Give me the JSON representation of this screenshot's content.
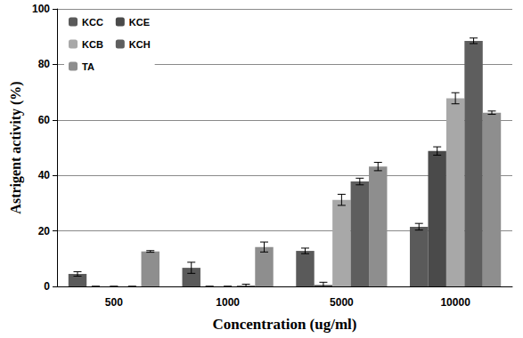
{
  "chart_data": {
    "type": "bar",
    "x_label": "Concentration (ug/ml)",
    "y_label": "Astrigent activity (%)",
    "categories": [
      "500",
      "1000",
      "5000",
      "10000"
    ],
    "series": [
      {
        "name": "KCC",
        "color": "#5a5a5a",
        "values": [
          4.5,
          6.7,
          12.8,
          21.5
        ],
        "errors": [
          0.8,
          2.0,
          1.0,
          1.2
        ]
      },
      {
        "name": "KCE",
        "color": "#4a4a4a",
        "values": [
          0,
          0,
          0.5,
          48.8
        ],
        "errors": [
          0,
          0,
          1.0,
          1.5
        ]
      },
      {
        "name": "KCB",
        "color": "#a8a8a8",
        "values": [
          0,
          0,
          31.2,
          67.8
        ],
        "errors": [
          0,
          0,
          2.0,
          2.0
        ]
      },
      {
        "name": "KCH",
        "color": "#5e5e5e",
        "values": [
          0,
          0.3,
          37.8,
          88.5
        ],
        "errors": [
          0,
          0.5,
          1.2,
          1.0
        ]
      },
      {
        "name": "TA",
        "color": "#8e8e8e",
        "values": [
          12.6,
          14.2,
          43.2,
          62.6
        ],
        "errors": [
          0.3,
          1.8,
          1.5,
          0.6
        ]
      }
    ],
    "ylim": [
      0,
      100
    ],
    "yticks": [
      0,
      20,
      40,
      60,
      80,
      100
    ],
    "grid": true,
    "legend": "upper left"
  }
}
